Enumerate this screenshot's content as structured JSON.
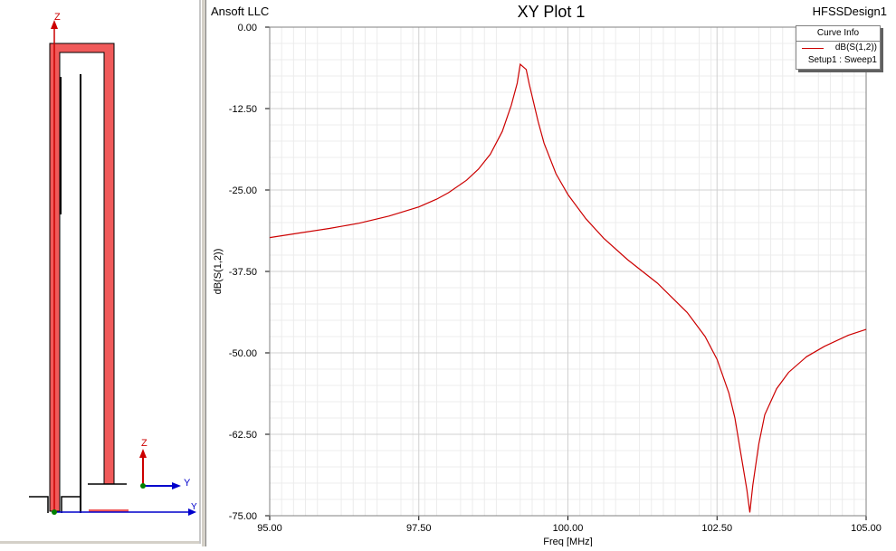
{
  "geometry_view": {
    "axis_labels": {
      "z": "Z",
      "y": "Y"
    },
    "colors": {
      "trace": "#f05a5a",
      "axis_z": "#cc0000",
      "axis_y": "#0000cc",
      "origin": "#008000"
    }
  },
  "plot": {
    "company": "Ansoft LLC",
    "design": "HFSSDesign1",
    "legend": {
      "header": "Curve Info",
      "entry": "dB(S(1,2))",
      "subtext": "Setup1 : Sweep1"
    }
  },
  "chart_data": {
    "type": "line",
    "title": "XY Plot 1",
    "xlabel": "Freq [MHz]",
    "ylabel": "dB(S(1,2))",
    "xlim": [
      95,
      105
    ],
    "ylim": [
      -75,
      0
    ],
    "xticks": [
      "95.00",
      "97.50",
      "100.00",
      "102.50",
      "105.00"
    ],
    "yticks": [
      "0.00",
      "-12.50",
      "-25.00",
      "-37.50",
      "-50.00",
      "-62.50",
      "-75.00"
    ],
    "grid": true,
    "legend_position": "top-right",
    "series": [
      {
        "name": "dB(S(1,2))",
        "color": "#cc0000",
        "x": [
          95.0,
          95.5,
          96.0,
          96.5,
          97.0,
          97.5,
          97.8,
          98.0,
          98.3,
          98.5,
          98.7,
          98.9,
          99.05,
          99.15,
          99.2,
          99.3,
          99.35,
          99.5,
          99.6,
          99.8,
          100.0,
          100.3,
          100.6,
          101.0,
          101.5,
          102.0,
          102.3,
          102.5,
          102.7,
          102.8,
          102.9,
          103.0,
          103.05,
          103.1,
          103.2,
          103.3,
          103.5,
          103.7,
          104.0,
          104.3,
          104.7,
          105.0
        ],
        "y": [
          -32.3,
          -31.6,
          -30.9,
          -30.1,
          -29.0,
          -27.6,
          -26.4,
          -25.4,
          -23.5,
          -21.8,
          -19.5,
          -16.0,
          -12.0,
          -8.6,
          -5.7,
          -6.5,
          -8.7,
          -14.5,
          -17.8,
          -22.5,
          -25.7,
          -29.4,
          -32.4,
          -35.7,
          -39.3,
          -43.8,
          -47.5,
          -51.0,
          -56.2,
          -60.0,
          -65.5,
          -71.0,
          -74.5,
          -70.3,
          -64.0,
          -59.5,
          -55.5,
          -53.0,
          -50.6,
          -49.0,
          -47.3,
          -46.4
        ]
      }
    ]
  }
}
